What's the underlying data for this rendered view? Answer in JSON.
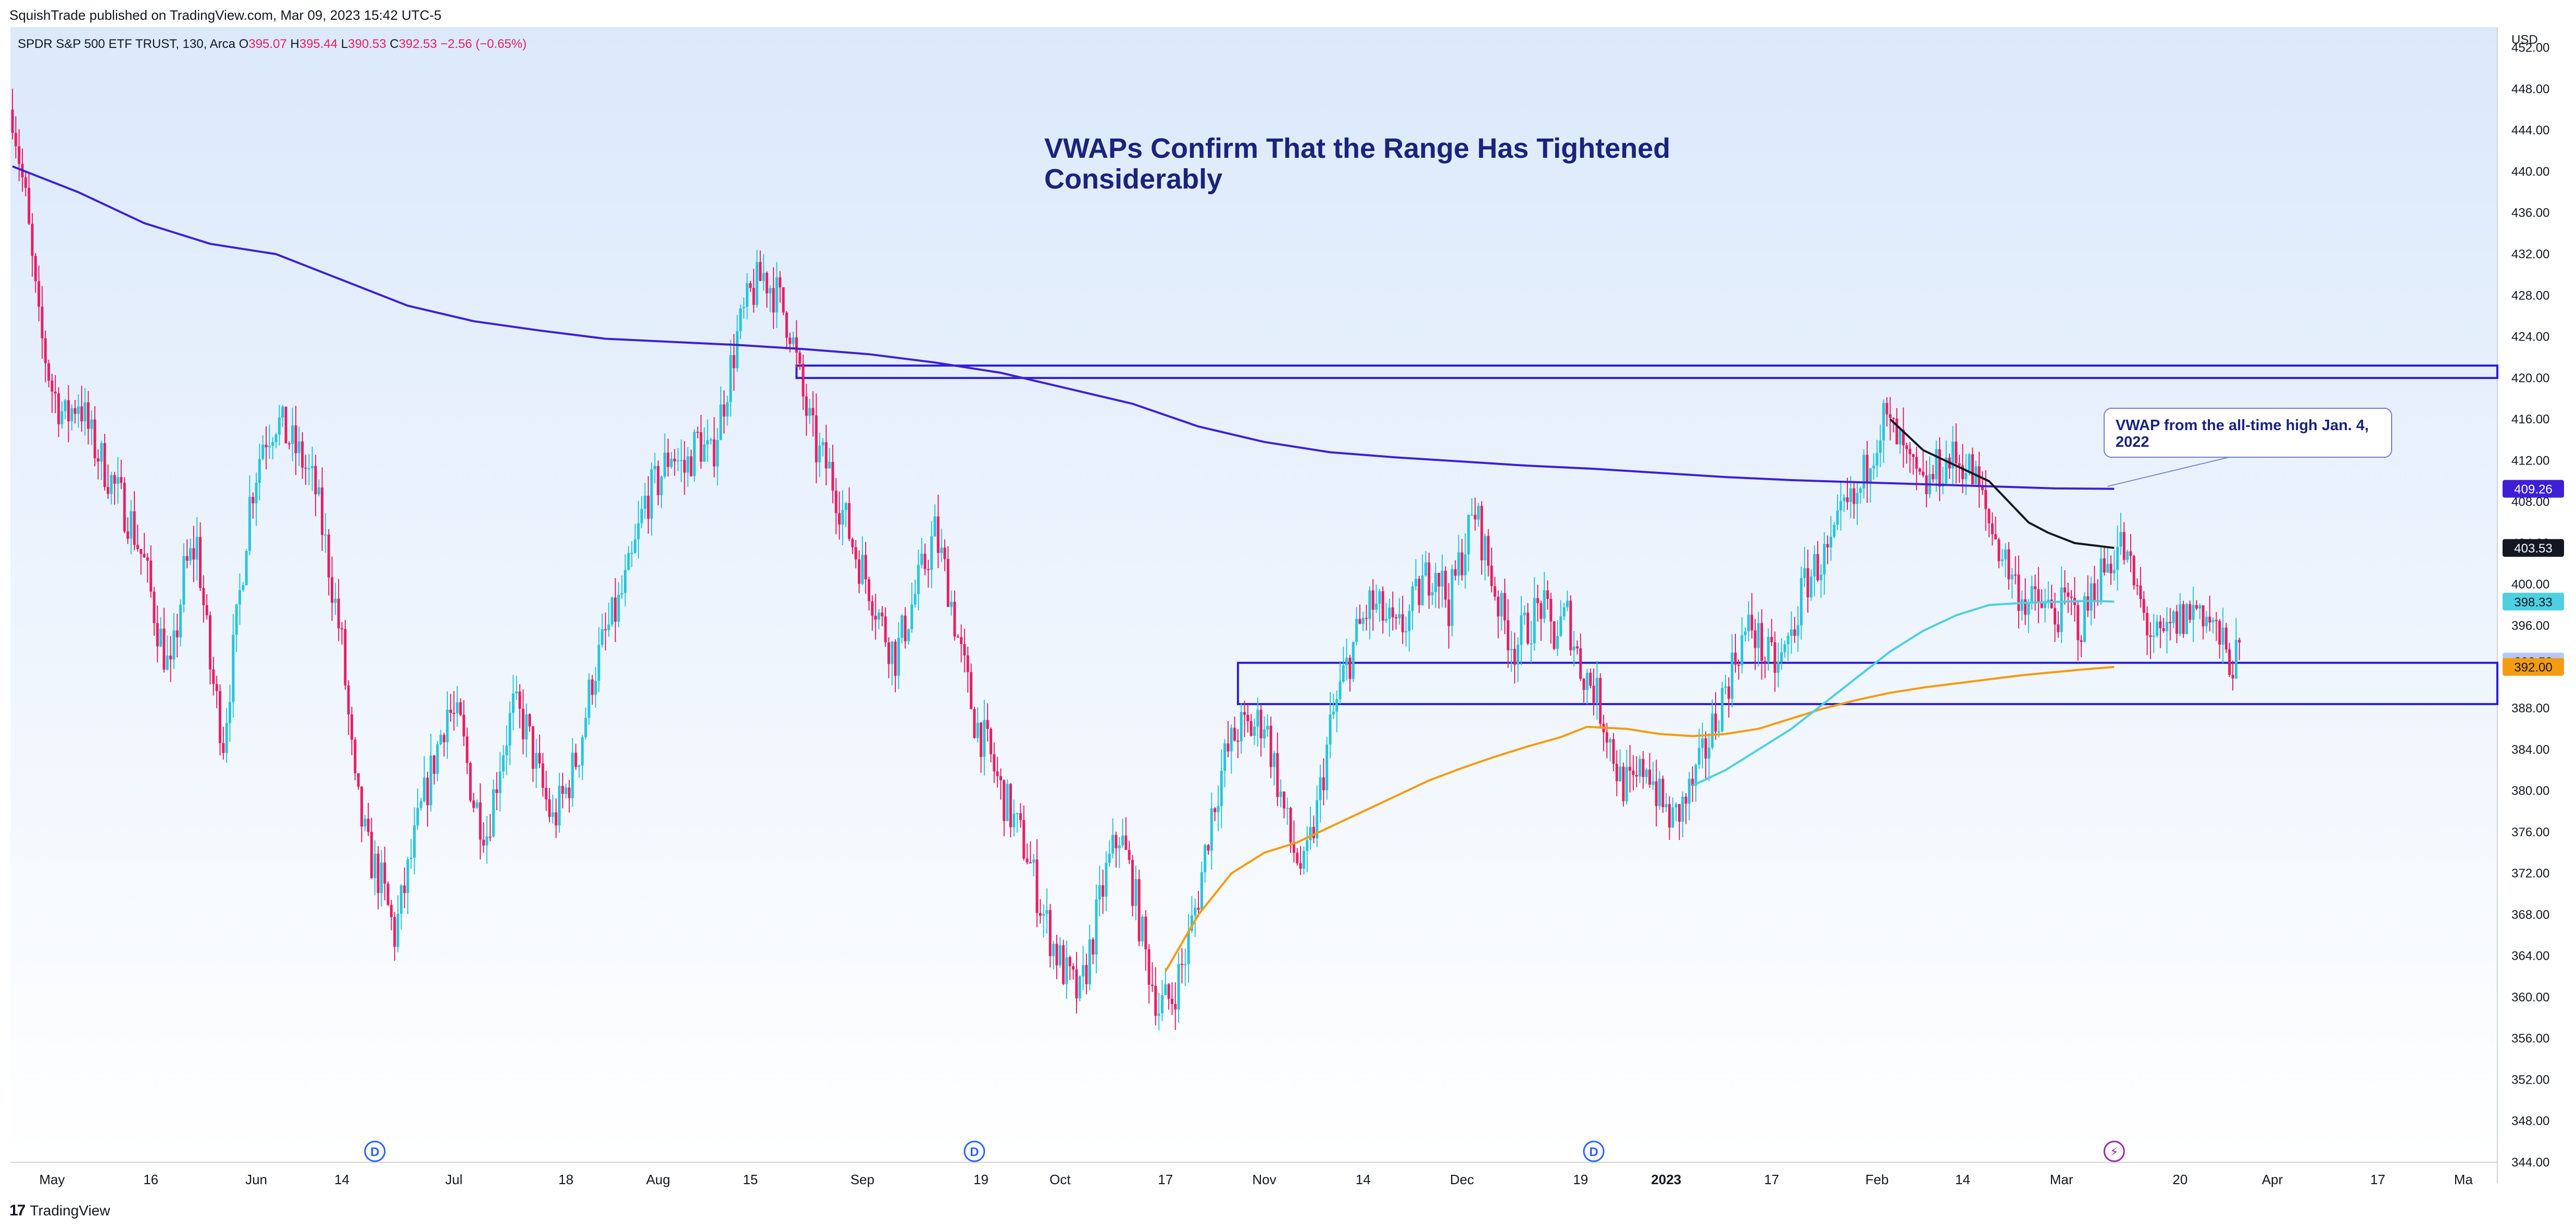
{
  "header": {
    "publisher": "SquishTrade published on TradingView.com, Mar 09, 2023 15:42 UTC-5"
  },
  "legend": {
    "symbol": "SPDR S&P 500 ETF TRUST, 130, Arca",
    "o_label": "O",
    "o": "395.07",
    "h_label": "H",
    "h": "395.44",
    "l_label": "L",
    "l": "390.53",
    "c_label": "C",
    "c": "392.53",
    "change": "−2.56 (−0.65%)"
  },
  "footer": {
    "brand": "TradingView",
    "logo": "17"
  },
  "colors": {
    "up": "#26c6da",
    "down": "#e91e63",
    "vwap_ath": "#3f1fd6",
    "vwap_swing": "#f39c12",
    "vwap_low": "#4dd0e1",
    "vwap_feb": "#131722",
    "zone": "#2c1fd6",
    "title": "#1a237e"
  },
  "chart_data": {
    "type": "candlestick",
    "title": "VWAPs Confirm That the Range Has Tightened Considerably",
    "currency": "USD",
    "ylim": [
      344,
      454
    ],
    "y_ticks": [
      452,
      448,
      444,
      440,
      436,
      432,
      428,
      424,
      420,
      416,
      412,
      408,
      404,
      400,
      396,
      392,
      388,
      384,
      380,
      376,
      372,
      368,
      364,
      360,
      356,
      352,
      348,
      344
    ],
    "x_ticks": [
      {
        "label": "May",
        "day": 6
      },
      {
        "label": "16",
        "day": 21
      },
      {
        "label": "Jun",
        "day": 37
      },
      {
        "label": "14",
        "day": 50
      },
      {
        "label": "Jul",
        "day": 67
      },
      {
        "label": "18",
        "day": 84
      },
      {
        "label": "Aug",
        "day": 98
      },
      {
        "label": "15",
        "day": 112
      },
      {
        "label": "Sep",
        "day": 129
      },
      {
        "label": "19",
        "day": 147
      },
      {
        "label": "Oct",
        "day": 159
      },
      {
        "label": "17",
        "day": 175
      },
      {
        "label": "Nov",
        "day": 190
      },
      {
        "label": "14",
        "day": 205
      },
      {
        "label": "Dec",
        "day": 220
      },
      {
        "label": "19",
        "day": 238
      },
      {
        "label": "2023",
        "day": 251
      },
      {
        "label": "17",
        "day": 267
      },
      {
        "label": "Feb",
        "day": 283
      },
      {
        "label": "14",
        "day": 296
      },
      {
        "label": "Mar",
        "day": 311
      },
      {
        "label": "20",
        "day": 329
      },
      {
        "label": "Apr",
        "day": 343
      },
      {
        "label": "17",
        "day": 359
      },
      {
        "label": "Ma",
        "day": 372
      }
    ],
    "price_scale_labels": [
      {
        "text": "409.26",
        "value": 409.26,
        "color": "#3f1fd6"
      },
      {
        "text": "403.53",
        "value": 403.53,
        "color": "#131722"
      },
      {
        "text": "398.33",
        "value": 398.33,
        "color": "#4dd0e1"
      },
      {
        "text": "392.53",
        "value": 392.53,
        "color": "#b7c7f5"
      },
      {
        "text": "392.00",
        "value": 392.0,
        "color": "#f39c12"
      }
    ],
    "zones": [
      {
        "name": "upper resistance zone",
        "day_start": 119,
        "y_top": 421.2,
        "y_bottom": 420.0
      },
      {
        "name": "lower support zone",
        "day_start": 186,
        "y_top": 392.4,
        "y_bottom": 388.4
      }
    ],
    "annotation": {
      "text": "VWAP from the all-time high Jan. 4, 2022",
      "day": 318,
      "value": 409.5
    },
    "event_markers": [
      {
        "label": "D",
        "day": 55
      },
      {
        "label": "D",
        "day": 146
      },
      {
        "label": "D",
        "day": 240
      }
    ],
    "flash_marker": {
      "label": "⚡",
      "day": 319
    },
    "vwaps": [
      {
        "name": "VWAP from all-time high",
        "color": "#3f1fd6",
        "points": [
          [
            0,
            440.5
          ],
          [
            10,
            438
          ],
          [
            20,
            435
          ],
          [
            30,
            433
          ],
          [
            40,
            432
          ],
          [
            50,
            429.5
          ],
          [
            60,
            427
          ],
          [
            70,
            425.5
          ],
          [
            80,
            424.6
          ],
          [
            90,
            423.8
          ],
          [
            100,
            423.5
          ],
          [
            110,
            423.2
          ],
          [
            120,
            422.8
          ],
          [
            130,
            422.3
          ],
          [
            140,
            421.5
          ],
          [
            150,
            420.5
          ],
          [
            160,
            419
          ],
          [
            170,
            417.5
          ],
          [
            180,
            415.3
          ],
          [
            190,
            413.8
          ],
          [
            200,
            412.8
          ],
          [
            210,
            412.3
          ],
          [
            220,
            411.9
          ],
          [
            230,
            411.5
          ],
          [
            240,
            411.2
          ],
          [
            250,
            410.8
          ],
          [
            260,
            410.4
          ],
          [
            270,
            410.1
          ],
          [
            280,
            409.9
          ],
          [
            290,
            409.7
          ],
          [
            300,
            409.5
          ],
          [
            310,
            409.3
          ],
          [
            319,
            409.26
          ]
        ]
      },
      {
        "name": "VWAP from October low",
        "color": "#f39c12",
        "points": [
          [
            175,
            362.5
          ],
          [
            180,
            368
          ],
          [
            185,
            372
          ],
          [
            190,
            374
          ],
          [
            195,
            375
          ],
          [
            200,
            376.5
          ],
          [
            205,
            378
          ],
          [
            210,
            379.5
          ],
          [
            215,
            381
          ],
          [
            220,
            382.2
          ],
          [
            225,
            383.3
          ],
          [
            230,
            384.3
          ],
          [
            235,
            385.2
          ],
          [
            239,
            386.2
          ],
          [
            245,
            386
          ],
          [
            250,
            385.5
          ],
          [
            255,
            385.3
          ],
          [
            260,
            385.5
          ],
          [
            265,
            386
          ],
          [
            270,
            387
          ],
          [
            275,
            388
          ],
          [
            280,
            388.8
          ],
          [
            285,
            389.5
          ],
          [
            290,
            390
          ],
          [
            295,
            390.4
          ],
          [
            300,
            390.8
          ],
          [
            305,
            391.2
          ],
          [
            310,
            391.5
          ],
          [
            315,
            391.8
          ],
          [
            319,
            392.0
          ]
        ]
      },
      {
        "name": "VWAP from December low",
        "color": "#4dd0e1",
        "points": [
          [
            255,
            380.5
          ],
          [
            260,
            382
          ],
          [
            265,
            384
          ],
          [
            270,
            386
          ],
          [
            275,
            388.5
          ],
          [
            280,
            391
          ],
          [
            285,
            393.5
          ],
          [
            290,
            395.5
          ],
          [
            295,
            397
          ],
          [
            300,
            398
          ],
          [
            305,
            398.2
          ],
          [
            310,
            398.3
          ],
          [
            315,
            398.4
          ],
          [
            319,
            398.33
          ]
        ]
      },
      {
        "name": "VWAP from February high",
        "color": "#131722",
        "points": [
          [
            285,
            416
          ],
          [
            290,
            413
          ],
          [
            295,
            411.5
          ],
          [
            300,
            410
          ],
          [
            303,
            408
          ],
          [
            306,
            406
          ],
          [
            309,
            405
          ],
          [
            313,
            404
          ],
          [
            319,
            403.53
          ]
        ]
      }
    ],
    "ohlc_path": [
      [
        0,
        446
      ],
      [
        2,
        437
      ],
      [
        4,
        425
      ],
      [
        6,
        419
      ],
      [
        8,
        416
      ],
      [
        10,
        418
      ],
      [
        12,
        414
      ],
      [
        15,
        410
      ],
      [
        18,
        406
      ],
      [
        20,
        402
      ],
      [
        22,
        396
      ],
      [
        24,
        391
      ],
      [
        26,
        401
      ],
      [
        28,
        404
      ],
      [
        30,
        392
      ],
      [
        32,
        385
      ],
      [
        34,
        396
      ],
      [
        36,
        408
      ],
      [
        38,
        414
      ],
      [
        40,
        416
      ],
      [
        42,
        414
      ],
      [
        44,
        412
      ],
      [
        46,
        409
      ],
      [
        48,
        402
      ],
      [
        50,
        394
      ],
      [
        52,
        380
      ],
      [
        54,
        374
      ],
      [
        56,
        371
      ],
      [
        58,
        366
      ],
      [
        60,
        372
      ],
      [
        62,
        378
      ],
      [
        64,
        383
      ],
      [
        66,
        388
      ],
      [
        68,
        386
      ],
      [
        70,
        379
      ],
      [
        72,
        376
      ],
      [
        74,
        383
      ],
      [
        76,
        388
      ],
      [
        78,
        386
      ],
      [
        80,
        381
      ],
      [
        82,
        377
      ],
      [
        84,
        380
      ],
      [
        86,
        384
      ],
      [
        88,
        391
      ],
      [
        90,
        395
      ],
      [
        92,
        398
      ],
      [
        94,
        402
      ],
      [
        96,
        408
      ],
      [
        98,
        410
      ],
      [
        100,
        413
      ],
      [
        102,
        411
      ],
      [
        104,
        414
      ],
      [
        106,
        412
      ],
      [
        108,
        418
      ],
      [
        110,
        424
      ],
      [
        112,
        428
      ],
      [
        114,
        430
      ],
      [
        116,
        428
      ],
      [
        118,
        425
      ],
      [
        120,
        418
      ],
      [
        122,
        413
      ],
      [
        124,
        411
      ],
      [
        126,
        407
      ],
      [
        128,
        403
      ],
      [
        130,
        400
      ],
      [
        132,
        396
      ],
      [
        134,
        393
      ],
      [
        136,
        397
      ],
      [
        138,
        401
      ],
      [
        140,
        405
      ],
      [
        142,
        400
      ],
      [
        144,
        393
      ],
      [
        146,
        387
      ],
      [
        148,
        384
      ],
      [
        150,
        380
      ],
      [
        152,
        377
      ],
      [
        154,
        374
      ],
      [
        156,
        369
      ],
      [
        158,
        365
      ],
      [
        160,
        362
      ],
      [
        162,
        360
      ],
      [
        164,
        366
      ],
      [
        166,
        372
      ],
      [
        168,
        376
      ],
      [
        170,
        371
      ],
      [
        172,
        364
      ],
      [
        174,
        359
      ],
      [
        176,
        360
      ],
      [
        178,
        364
      ],
      [
        180,
        370
      ],
      [
        182,
        378
      ],
      [
        184,
        383
      ],
      [
        186,
        386
      ],
      [
        188,
        386
      ],
      [
        190,
        387
      ],
      [
        192,
        381
      ],
      [
        194,
        375
      ],
      [
        196,
        372
      ],
      [
        198,
        378
      ],
      [
        200,
        386
      ],
      [
        202,
        391
      ],
      [
        204,
        395
      ],
      [
        206,
        398
      ],
      [
        208,
        397
      ],
      [
        210,
        395
      ],
      [
        212,
        397
      ],
      [
        214,
        400
      ],
      [
        216,
        402
      ],
      [
        218,
        398
      ],
      [
        220,
        403
      ],
      [
        222,
        407
      ],
      [
        224,
        402
      ],
      [
        226,
        397
      ],
      [
        228,
        394
      ],
      [
        230,
        396
      ],
      [
        232,
        398
      ],
      [
        234,
        395
      ],
      [
        236,
        397
      ],
      [
        238,
        392
      ],
      [
        240,
        390
      ],
      [
        242,
        386
      ],
      [
        244,
        381
      ],
      [
        246,
        380
      ],
      [
        248,
        383
      ],
      [
        250,
        379
      ],
      [
        252,
        377
      ],
      [
        254,
        379
      ],
      [
        256,
        382
      ],
      [
        258,
        386
      ],
      [
        260,
        390
      ],
      [
        262,
        394
      ],
      [
        264,
        396
      ],
      [
        266,
        393
      ],
      [
        268,
        392
      ],
      [
        270,
        395
      ],
      [
        272,
        400
      ],
      [
        274,
        402
      ],
      [
        276,
        403
      ],
      [
        278,
        407
      ],
      [
        280,
        408
      ],
      [
        282,
        413
      ],
      [
        284,
        416
      ],
      [
        286,
        414
      ],
      [
        288,
        411
      ],
      [
        290,
        409
      ],
      [
        292,
        411
      ],
      [
        294,
        412
      ],
      [
        296,
        412
      ],
      [
        298,
        410
      ],
      [
        300,
        406
      ],
      [
        302,
        403
      ],
      [
        304,
        400
      ],
      [
        306,
        398
      ],
      [
        308,
        398
      ],
      [
        310,
        397
      ],
      [
        312,
        398
      ],
      [
        314,
        396
      ],
      [
        316,
        400
      ],
      [
        318,
        402
      ],
      [
        320,
        404
      ],
      [
        322,
        400
      ],
      [
        324,
        396
      ],
      [
        326,
        394
      ],
      [
        328,
        396
      ],
      [
        330,
        397
      ],
      [
        332,
        398
      ],
      [
        334,
        396
      ],
      [
        336,
        393
      ],
      [
        338,
        392.5
      ]
    ]
  }
}
